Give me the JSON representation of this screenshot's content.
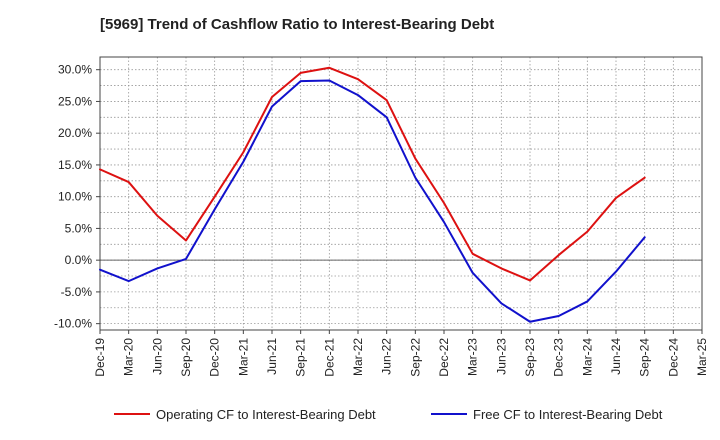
{
  "chart_data": {
    "type": "line",
    "title": "[5969]  Trend of Cashflow Ratio to Interest-Bearing Debt",
    "xlabel": "",
    "ylabel": "",
    "x": [
      "Dec-19",
      "Mar-20",
      "Jun-20",
      "Sep-20",
      "Dec-20",
      "Mar-21",
      "Jun-21",
      "Sep-21",
      "Dec-21",
      "Mar-22",
      "Jun-22",
      "Sep-22",
      "Dec-22",
      "Mar-23",
      "Jun-23",
      "Sep-23",
      "Dec-23",
      "Mar-24",
      "Jun-24",
      "Sep-24",
      "Dec-24",
      "Mar-25"
    ],
    "x_tick_labels": [
      "Dec-19",
      "Mar-20",
      "Jun-20",
      "Sep-20",
      "Dec-20",
      "Mar-21",
      "Jun-21",
      "Sep-21",
      "Dec-21",
      "Mar-22",
      "Jun-22",
      "Sep-22",
      "Dec-22",
      "Mar-23",
      "Jun-23",
      "Sep-23",
      "Dec-23",
      "Mar-24",
      "Jun-24",
      "Sep-24",
      "Dec-24",
      "Mar-25"
    ],
    "y_ticks": [
      30,
      25,
      20,
      15,
      10,
      5,
      0,
      -5,
      -10
    ],
    "y_tick_labels": [
      "30.0%",
      "25.0%",
      "20.0%",
      "15.0%",
      "10.0%",
      "5.0%",
      "0.0%",
      "-5.0%",
      "-10.0%"
    ],
    "ylim": [
      -11,
      32
    ],
    "grid": true,
    "legend_position": "bottom",
    "series": [
      {
        "name": "Operating CF to Interest-Bearing Debt",
        "color": "#dd1111",
        "values": [
          14.3,
          12.3,
          7.0,
          3.1,
          10.0,
          17.0,
          25.7,
          29.5,
          30.3,
          28.5,
          25.2,
          16.0,
          9.0,
          1.0,
          -1.3,
          -3.2,
          0.8,
          4.5,
          9.8,
          13.0,
          null,
          null
        ]
      },
      {
        "name": "Free CF to Interest-Bearing Debt",
        "color": "#1111cc",
        "values": [
          -1.5,
          -3.3,
          -1.3,
          0.2,
          8.0,
          15.5,
          24.2,
          28.2,
          28.3,
          26.0,
          22.5,
          13.0,
          6.0,
          -2.0,
          -6.8,
          -9.7,
          -8.8,
          -6.5,
          -1.8,
          3.6,
          null,
          null
        ]
      }
    ]
  }
}
